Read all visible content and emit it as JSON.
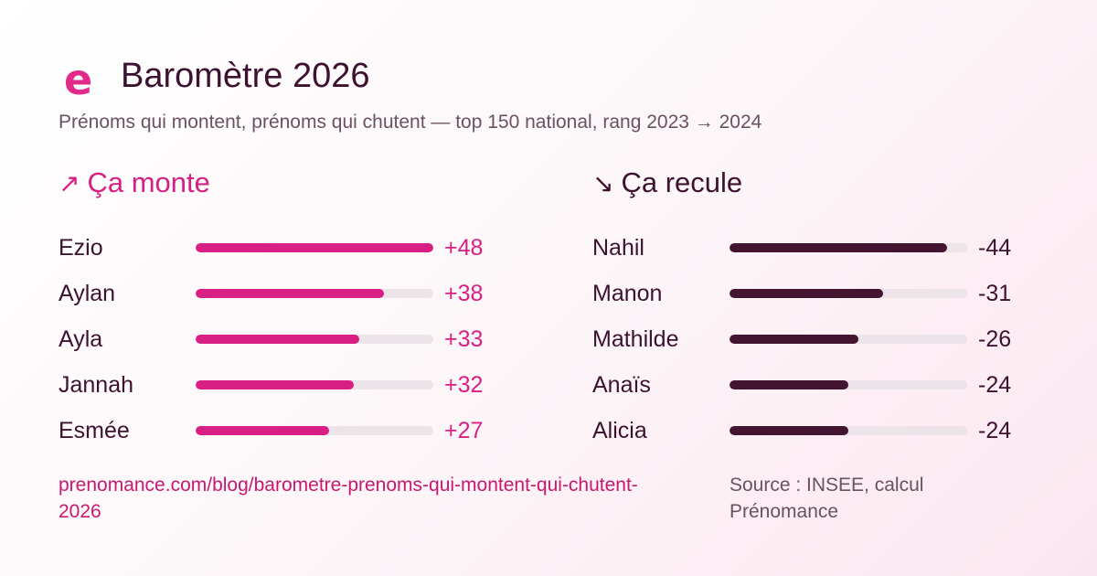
{
  "header": {
    "logo_letter": "e",
    "title": "Baromètre 2026",
    "subtitle": "Prénoms qui montent, prénoms qui chutent — top 150 national, rang 2023 → 2024"
  },
  "chart_data": [
    {
      "type": "bar",
      "orientation": "horizontal",
      "title": "Ça monte",
      "icon": "arrow-up-right-icon",
      "color": "#d91f84",
      "categories": [
        "Ezio",
        "Aylan",
        "Ayla",
        "Jannah",
        "Esmée"
      ],
      "values": [
        48,
        38,
        33,
        32,
        27
      ],
      "labels": [
        "+48",
        "+38",
        "+33",
        "+32",
        "+27"
      ],
      "xlim": [
        0,
        48
      ]
    },
    {
      "type": "bar",
      "orientation": "horizontal",
      "title": "Ça recule",
      "icon": "arrow-down-right-icon",
      "color": "#441531",
      "categories": [
        "Nahil",
        "Manon",
        "Mathilde",
        "Anaïs",
        "Alicia"
      ],
      "values": [
        -44,
        -31,
        -26,
        -24,
        -24
      ],
      "labels": [
        "-44",
        "-31",
        "-26",
        "-24",
        "-24"
      ],
      "xlim": [
        0,
        48
      ]
    }
  ],
  "footer": {
    "url": "prenomance.com/blog/barometre-prenoms-qui-montent-qui-chutent-2026",
    "source": "Source : INSEE, calcul Prénomance"
  }
}
